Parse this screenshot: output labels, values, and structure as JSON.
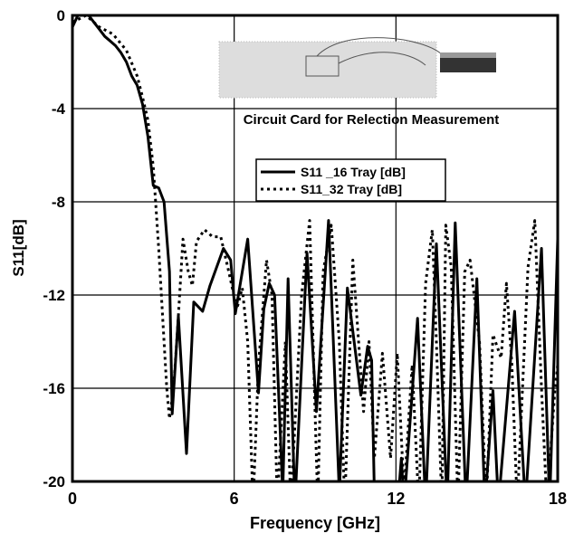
{
  "chart_data": {
    "type": "line",
    "x_label": "Frequency [GHz]",
    "y_label": "S11[dB]",
    "annotation": "Circuit Card for Relection Measurement",
    "xlim": [
      0,
      18
    ],
    "ylim": [
      -20,
      0
    ],
    "xticks": [
      0,
      6,
      12,
      18
    ],
    "yticks": [
      0,
      -4,
      -8,
      -12,
      -16,
      -20
    ],
    "grid": true,
    "series": [
      {
        "name": "S11 _16 Tray [dB]",
        "color": "#000000",
        "line_style": "solid",
        "x": [
          0,
          0.2,
          0.4,
          0.6,
          0.8,
          1.0,
          1.2,
          1.4,
          1.6,
          1.8,
          2.0,
          2.2,
          2.4,
          2.6,
          2.8,
          3.0,
          3.2,
          3.4,
          3.6,
          3.7,
          3.93,
          4.23,
          4.5,
          4.83,
          5.1,
          5.6,
          5.87,
          6.04,
          6.5,
          6.9,
          7.1,
          7.3,
          7.5,
          7.8,
          8.0,
          8.25,
          8.7,
          9.05,
          9.5,
          9.9,
          10.2,
          10.7,
          10.95,
          11.1,
          11.2,
          11.6,
          12.0,
          12.2,
          12.3,
          12.8,
          13.1,
          13.5,
          13.9,
          14.2,
          14.6,
          15.0,
          15.3,
          15.6,
          15.8,
          16.4,
          16.8,
          17.4,
          17.7,
          18.0
        ],
        "values": [
          -0.5,
          0,
          0.1,
          0,
          -0.3,
          -0.6,
          -0.9,
          -1.1,
          -1.3,
          -1.6,
          -2.0,
          -2.6,
          -3.0,
          -3.8,
          -5.2,
          -7.3,
          -7.4,
          -8.0,
          -11,
          -17.1,
          -12.9,
          -18.8,
          -12.3,
          -12.7,
          -11.6,
          -10,
          -10.5,
          -12.8,
          -9.6,
          -16.2,
          -12.6,
          -11.5,
          -12,
          -20.5,
          -11.3,
          -21,
          -10.2,
          -17,
          -8.8,
          -20.5,
          -11.7,
          -16.3,
          -14.2,
          -14.8,
          -20.5,
          -22,
          -22,
          -19,
          -21,
          -13,
          -21,
          -9.8,
          -21,
          -8.9,
          -21,
          -11.3,
          -21,
          -16.1,
          -21,
          -12.7,
          -21,
          -10,
          -21,
          -9.6
        ]
      },
      {
        "name": "S11_32 Tray  [dB]",
        "color": "#000000",
        "line_style": "dotted",
        "x": [
          0,
          0.5,
          1.0,
          1.5,
          2.0,
          2.4,
          2.6,
          2.8,
          3.0,
          3.2,
          3.4,
          3.5,
          3.6,
          3.75,
          3.9,
          4.1,
          4.3,
          4.45,
          4.6,
          4.9,
          5.2,
          5.5,
          5.8,
          6.1,
          6.3,
          6.5,
          6.7,
          6.9,
          7.2,
          7.4,
          7.6,
          7.9,
          8.1,
          8.5,
          8.8,
          9.0,
          9.1,
          9.3,
          9.6,
          9.9,
          10.1,
          10.4,
          10.8,
          11.0,
          11.2,
          11.5,
          11.8,
          12.05,
          12.3,
          12.6,
          12.85,
          13.1,
          13.35,
          13.5,
          13.7,
          13.85,
          14.05,
          14.3,
          14.55,
          14.75,
          15.1,
          15.35,
          15.6,
          15.9,
          16.1,
          16.3,
          16.5,
          16.9,
          17.15,
          17.4,
          17.6,
          17.9,
          18.0
        ],
        "values": [
          -0.3,
          0,
          -0.5,
          -0.8,
          -1.5,
          -2.6,
          -3.5,
          -4.5,
          -6.5,
          -10,
          -14,
          -16,
          -17.3,
          -16,
          -13.5,
          -9.6,
          -11,
          -11.6,
          -9.7,
          -9.2,
          -9.5,
          -9.5,
          -11,
          -12.6,
          -11.7,
          -14,
          -21,
          -15,
          -10.5,
          -12,
          -21,
          -14,
          -21,
          -12,
          -8.8,
          -17,
          -21,
          -11,
          -9,
          -14,
          -21,
          -10.5,
          -17,
          -14,
          -19,
          -14.5,
          -19,
          -14.5,
          -20.5,
          -15,
          -21,
          -11.5,
          -9.2,
          -14,
          -21,
          -9,
          -10.8,
          -21,
          -11,
          -10.5,
          -14,
          -21,
          -13.7,
          -14.7,
          -11.5,
          -15,
          -21,
          -10.8,
          -8.8,
          -16,
          -21,
          -16,
          -15
        ]
      }
    ]
  }
}
